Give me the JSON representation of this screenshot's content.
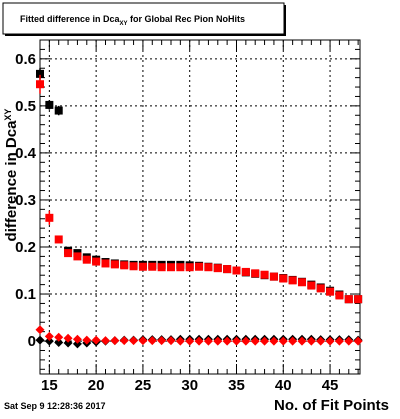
{
  "title": {
    "prefix": "Fitted difference in Dca",
    "subscript": "XY",
    "suffix": " for Global Rec Pion NoHits"
  },
  "timestamp": "Sat Sep  9 12:28:36 2017",
  "colors": {
    "series_black": "#000000",
    "series_red": "#ff0000",
    "grid": "#000000",
    "frame": "#000000"
  },
  "chart_data": {
    "type": "scatter",
    "xlabel": "No. of Fit Points",
    "ylabel": {
      "prefix": "difference in Dca",
      "subscript": "XY"
    },
    "xlim": [
      14,
      48.2
    ],
    "ylim": [
      -0.07,
      0.64
    ],
    "x_ticks": [
      15,
      20,
      25,
      30,
      35,
      40,
      45
    ],
    "y_ticks": [
      0,
      0.1,
      0.2,
      0.3,
      0.4,
      0.5,
      0.6
    ],
    "y_tick_labels": [
      "0",
      "0.1",
      "0.2",
      "0.3",
      "0.4",
      "0.5",
      "0.6"
    ],
    "grid": true,
    "series": [
      {
        "marker": "square",
        "color": "#000000",
        "points": [
          {
            "x": 14,
            "y": 0.568,
            "err": 0.012
          },
          {
            "x": 15,
            "y": 0.502,
            "err": 0.01
          },
          {
            "x": 16,
            "y": 0.49,
            "err": 0.01
          },
          {
            "x": 17,
            "y": 0.192
          },
          {
            "x": 18,
            "y": 0.187
          },
          {
            "x": 19,
            "y": 0.178
          },
          {
            "x": 20,
            "y": 0.173
          },
          {
            "x": 21,
            "y": 0.168
          },
          {
            "x": 22,
            "y": 0.165
          },
          {
            "x": 23,
            "y": 0.163
          },
          {
            "x": 24,
            "y": 0.162
          },
          {
            "x": 25,
            "y": 0.162
          },
          {
            "x": 26,
            "y": 0.162
          },
          {
            "x": 27,
            "y": 0.162
          },
          {
            "x": 28,
            "y": 0.162
          },
          {
            "x": 29,
            "y": 0.162
          },
          {
            "x": 30,
            "y": 0.161
          },
          {
            "x": 31,
            "y": 0.16
          },
          {
            "x": 32,
            "y": 0.158
          },
          {
            "x": 33,
            "y": 0.156
          },
          {
            "x": 34,
            "y": 0.153
          },
          {
            "x": 35,
            "y": 0.15
          },
          {
            "x": 36,
            "y": 0.146
          },
          {
            "x": 37,
            "y": 0.143
          },
          {
            "x": 38,
            "y": 0.14
          },
          {
            "x": 39,
            "y": 0.137
          },
          {
            "x": 40,
            "y": 0.134
          },
          {
            "x": 41,
            "y": 0.13
          },
          {
            "x": 42,
            "y": 0.126
          },
          {
            "x": 43,
            "y": 0.12
          },
          {
            "x": 44,
            "y": 0.114
          },
          {
            "x": 45,
            "y": 0.107
          },
          {
            "x": 46,
            "y": 0.099
          },
          {
            "x": 47,
            "y": 0.089
          },
          {
            "x": 48,
            "y": 0.089
          }
        ]
      },
      {
        "marker": "square",
        "color": "#ff0000",
        "points": [
          {
            "x": 14,
            "y": 0.546,
            "err": 0.02
          },
          {
            "x": 15,
            "y": 0.262,
            "err": 0.015
          },
          {
            "x": 16,
            "y": 0.216,
            "err": 0.006
          },
          {
            "x": 17,
            "y": 0.187
          },
          {
            "x": 18,
            "y": 0.18
          },
          {
            "x": 19,
            "y": 0.173
          },
          {
            "x": 20,
            "y": 0.169
          },
          {
            "x": 21,
            "y": 0.165
          },
          {
            "x": 22,
            "y": 0.163
          },
          {
            "x": 23,
            "y": 0.161
          },
          {
            "x": 24,
            "y": 0.159
          },
          {
            "x": 25,
            "y": 0.158
          },
          {
            "x": 26,
            "y": 0.158
          },
          {
            "x": 27,
            "y": 0.157
          },
          {
            "x": 28,
            "y": 0.157
          },
          {
            "x": 29,
            "y": 0.157
          },
          {
            "x": 30,
            "y": 0.157
          },
          {
            "x": 31,
            "y": 0.158
          },
          {
            "x": 32,
            "y": 0.157
          },
          {
            "x": 33,
            "y": 0.155
          },
          {
            "x": 34,
            "y": 0.153
          },
          {
            "x": 35,
            "y": 0.15
          },
          {
            "x": 36,
            "y": 0.147
          },
          {
            "x": 37,
            "y": 0.144
          },
          {
            "x": 38,
            "y": 0.141
          },
          {
            "x": 39,
            "y": 0.137
          },
          {
            "x": 40,
            "y": 0.133
          },
          {
            "x": 41,
            "y": 0.129
          },
          {
            "x": 42,
            "y": 0.125
          },
          {
            "x": 43,
            "y": 0.118
          },
          {
            "x": 44,
            "y": 0.112
          },
          {
            "x": 45,
            "y": 0.105
          },
          {
            "x": 46,
            "y": 0.097
          },
          {
            "x": 47,
            "y": 0.089
          },
          {
            "x": 48,
            "y": 0.089
          }
        ]
      },
      {
        "marker": "diamond",
        "color": "#000000",
        "points": [
          {
            "x": 14,
            "y": 0.002
          },
          {
            "x": 15,
            "y": 0.0
          },
          {
            "x": 16,
            "y": -0.003
          },
          {
            "x": 17,
            "y": -0.004
          },
          {
            "x": 18,
            "y": -0.006
          },
          {
            "x": 19,
            "y": -0.004
          },
          {
            "x": 20,
            "y": -0.002
          },
          {
            "x": 21,
            "y": 0.0
          },
          {
            "x": 22,
            "y": 0.001
          },
          {
            "x": 23,
            "y": 0.002
          },
          {
            "x": 24,
            "y": 0.002
          },
          {
            "x": 25,
            "y": 0.003
          },
          {
            "x": 26,
            "y": 0.003
          },
          {
            "x": 27,
            "y": 0.003
          },
          {
            "x": 28,
            "y": 0.003
          },
          {
            "x": 29,
            "y": 0.004
          },
          {
            "x": 30,
            "y": 0.004
          },
          {
            "x": 31,
            "y": 0.004
          },
          {
            "x": 32,
            "y": 0.004
          },
          {
            "x": 33,
            "y": 0.004
          },
          {
            "x": 34,
            "y": 0.004
          },
          {
            "x": 35,
            "y": 0.004
          },
          {
            "x": 36,
            "y": 0.004
          },
          {
            "x": 37,
            "y": 0.004
          },
          {
            "x": 38,
            "y": 0.004
          },
          {
            "x": 39,
            "y": 0.004
          },
          {
            "x": 40,
            "y": 0.004
          },
          {
            "x": 41,
            "y": 0.004
          },
          {
            "x": 42,
            "y": 0.004
          },
          {
            "x": 43,
            "y": 0.004
          },
          {
            "x": 44,
            "y": 0.003
          },
          {
            "x": 45,
            "y": 0.003
          },
          {
            "x": 46,
            "y": 0.003
          },
          {
            "x": 47,
            "y": 0.003
          },
          {
            "x": 48,
            "y": 0.002
          }
        ]
      },
      {
        "marker": "diamond",
        "color": "#ff0000",
        "points": [
          {
            "x": 14,
            "y": 0.024
          },
          {
            "x": 15,
            "y": 0.01
          },
          {
            "x": 16,
            "y": 0.008
          },
          {
            "x": 17,
            "y": 0.006
          },
          {
            "x": 18,
            "y": 0.004
          },
          {
            "x": 19,
            "y": 0.002
          },
          {
            "x": 20,
            "y": 0.002
          },
          {
            "x": 21,
            "y": 0.001
          },
          {
            "x": 22,
            "y": 0.001
          },
          {
            "x": 23,
            "y": 0.001
          },
          {
            "x": 24,
            "y": 0.001
          },
          {
            "x": 25,
            "y": 0.001
          },
          {
            "x": 26,
            "y": 0.001
          },
          {
            "x": 27,
            "y": 0.001
          },
          {
            "x": 28,
            "y": 0.001
          },
          {
            "x": 29,
            "y": 0.0
          },
          {
            "x": 30,
            "y": 0.0
          },
          {
            "x": 31,
            "y": 0.0
          },
          {
            "x": 32,
            "y": 0.0
          },
          {
            "x": 33,
            "y": 0.0
          },
          {
            "x": 34,
            "y": 0.0
          },
          {
            "x": 35,
            "y": 0.0
          },
          {
            "x": 36,
            "y": 0.0
          },
          {
            "x": 37,
            "y": 0.0
          },
          {
            "x": 38,
            "y": 0.0
          },
          {
            "x": 39,
            "y": 0.0
          },
          {
            "x": 40,
            "y": 0.0
          },
          {
            "x": 41,
            "y": 0.0
          },
          {
            "x": 42,
            "y": 0.0
          },
          {
            "x": 43,
            "y": 0.0
          },
          {
            "x": 44,
            "y": 0.0
          },
          {
            "x": 45,
            "y": 0.0
          },
          {
            "x": 46,
            "y": 0.0
          },
          {
            "x": 47,
            "y": 0.0
          },
          {
            "x": 48,
            "y": 0.0
          }
        ]
      }
    ]
  }
}
